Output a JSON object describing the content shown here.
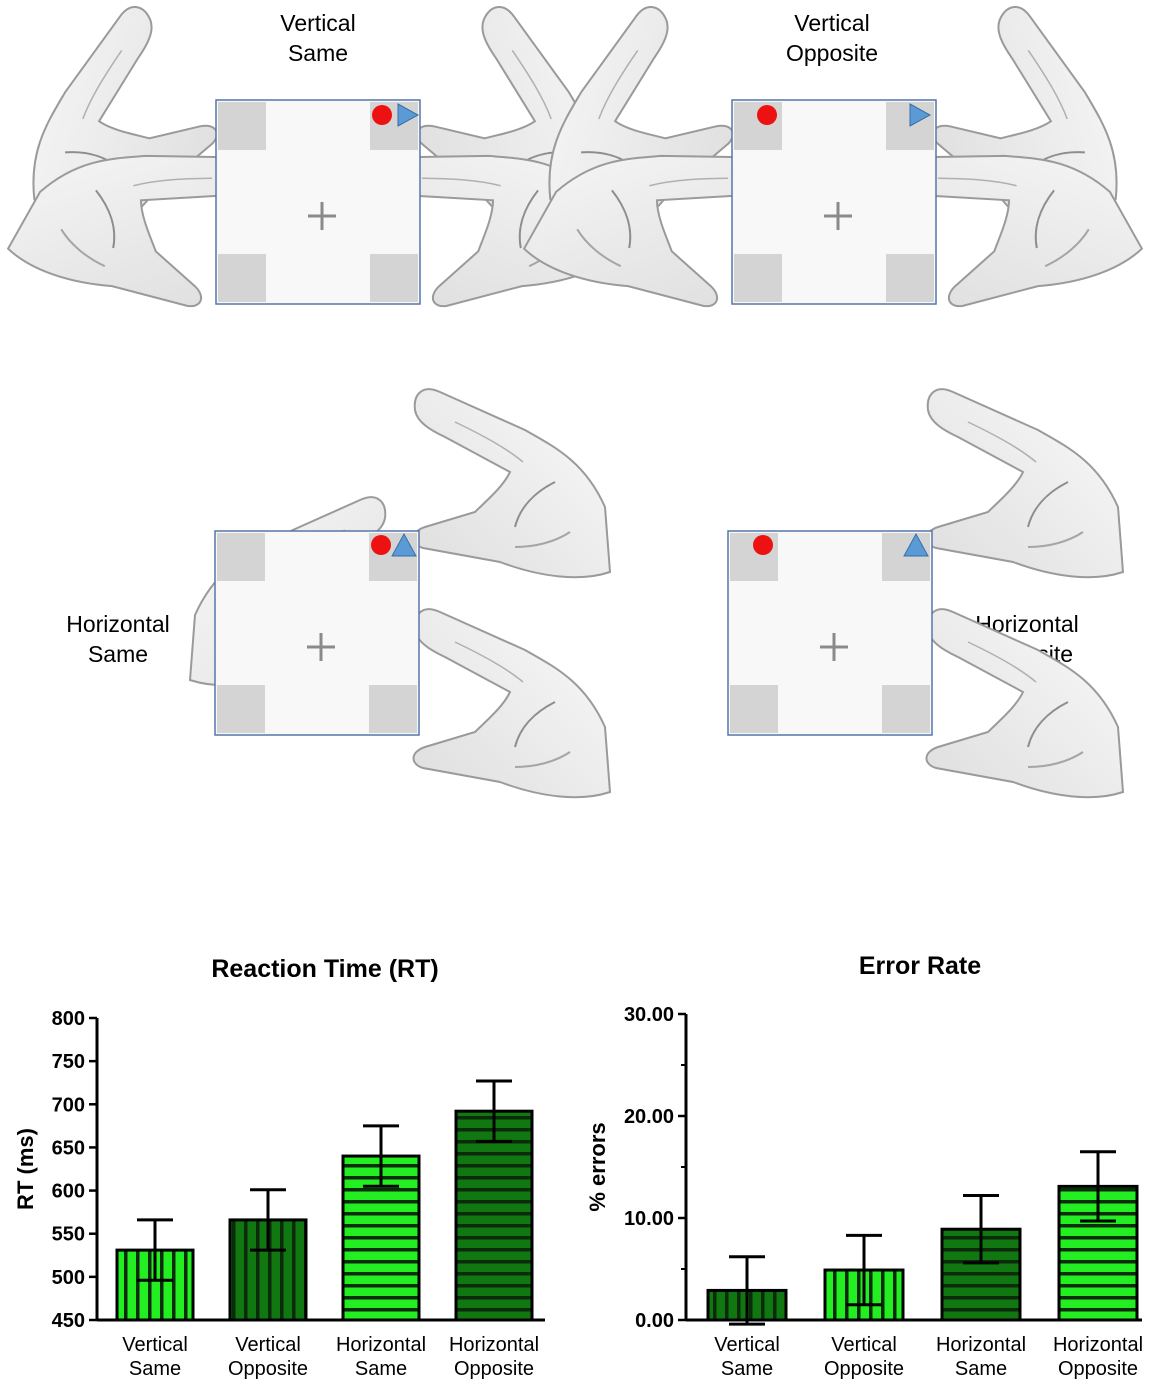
{
  "panels": [
    {
      "line1": "Vertical",
      "line2": "Same"
    },
    {
      "line1": "Vertical",
      "line2": "Opposite"
    },
    {
      "line1": "Horizontal",
      "line2": "Same"
    },
    {
      "line1": "Horizontal",
      "line2": "Opposite"
    }
  ],
  "colors": {
    "bright_green": "#22ee22",
    "dark_green": "#117711",
    "stimulus_red": "#ee1111",
    "stimulus_blue": "#5b9bd5",
    "box_border": "#5577aa"
  },
  "chart_data": [
    {
      "type": "bar",
      "title": "Reaction Time (RT)",
      "xlabel": "",
      "ylabel": "RT (ms)",
      "ylim": [
        450,
        800
      ],
      "yticks": [
        "450",
        "500",
        "550",
        "600",
        "650",
        "700",
        "750",
        "800"
      ],
      "categories": [
        [
          "Vertical",
          "Same"
        ],
        [
          "Vertical",
          "Opposite"
        ],
        [
          "Horizontal",
          "Same"
        ],
        [
          "Horizontal",
          "Opposite"
        ]
      ],
      "values": [
        531,
        566,
        640,
        692
      ],
      "errors": [
        35,
        35,
        35,
        35
      ],
      "bar_styles": [
        {
          "color": "#22ee22",
          "hatch": "vertical"
        },
        {
          "color": "#117711",
          "hatch": "vertical"
        },
        {
          "color": "#22ee22",
          "hatch": "horizontal"
        },
        {
          "color": "#117711",
          "hatch": "horizontal"
        }
      ]
    },
    {
      "type": "bar",
      "title": "Error Rate",
      "xlabel": "",
      "ylabel": "% errors",
      "ylim": [
        0,
        30
      ],
      "yticks": [
        "0.00",
        "10.00",
        "20.00",
        "30.00"
      ],
      "categories": [
        [
          "Vertical",
          "Same"
        ],
        [
          "Vertical",
          "Opposite"
        ],
        [
          "Horizontal",
          "Same"
        ],
        [
          "Horizontal",
          "Opposite"
        ]
      ],
      "values": [
        2.9,
        4.9,
        8.9,
        13.1
      ],
      "errors": [
        3.3,
        3.4,
        3.3,
        3.4
      ],
      "bar_styles": [
        {
          "color": "#117711",
          "hatch": "vertical"
        },
        {
          "color": "#22ee22",
          "hatch": "vertical"
        },
        {
          "color": "#117711",
          "hatch": "horizontal"
        },
        {
          "color": "#22ee22",
          "hatch": "horizontal"
        }
      ]
    }
  ]
}
